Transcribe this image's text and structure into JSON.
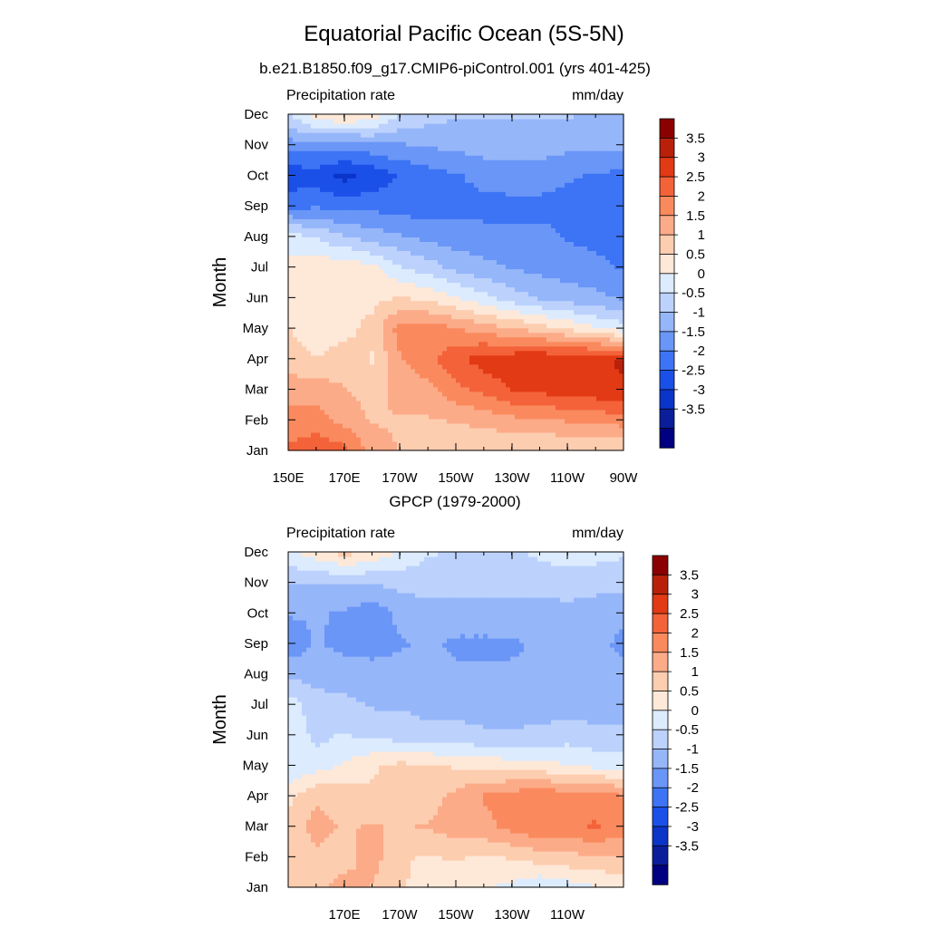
{
  "page": {
    "title": "Equatorial Pacific Ocean (5S-5N)",
    "subtitle": "b.e21.B1850.f09_g17.CMIP6-piControl.001 (yrs 401-425)"
  },
  "colors": {
    "levels": [
      "#000080",
      "#0a1e9c",
      "#0b34c8",
      "#1a50e8",
      "#3c74f5",
      "#6a96f7",
      "#96b6fa",
      "#bcd2fc",
      "#dcebfe",
      "#fee8d8",
      "#fdcdb0",
      "#fcab88",
      "#fa8a5e",
      "#f4623a",
      "#e23a14",
      "#b8200a",
      "#8b0000"
    ]
  },
  "chart_data": [
    {
      "type": "heatmap",
      "name": "b.e21.B1850.f09_g17.CMIP6-piControl.001 (yrs 401-425)",
      "left_label": "Precipitation rate",
      "right_label": "mm/day",
      "ylabel": "Month",
      "x_tick_labels": [
        "150E",
        "170E",
        "170W",
        "150W",
        "130W",
        "110W",
        "90W"
      ],
      "y_tick_labels": [
        "Jan",
        "Feb",
        "Mar",
        "Apr",
        "May",
        "Jun",
        "Jul",
        "Aug",
        "Sep",
        "Oct",
        "Nov",
        "Dec"
      ],
      "x_range": [
        150,
        270
      ],
      "y_range": [
        "Jan",
        "Dec"
      ],
      "colorbar_labels": [
        "3.5",
        "3",
        "2.5",
        "2",
        "1.5",
        "1",
        "0.5",
        "0",
        "-0.5",
        "-1",
        "-1.5",
        "-2",
        "-2.5",
        "-3",
        "-3.5"
      ],
      "colorbar_levels": [
        3.5,
        3,
        2.5,
        2,
        1.5,
        1,
        0.5,
        0,
        -0.5,
        -1,
        -1.5,
        -2,
        -2.5,
        -3,
        -3.5
      ],
      "x": [
        150,
        160,
        170,
        180,
        190,
        200,
        210,
        220,
        230,
        240,
        250,
        260,
        270
      ],
      "values": [
        [
          2.3,
          2.6,
          2.4,
          1.6,
          1.2,
          0.9,
          0.8,
          0.8,
          0.7,
          0.7,
          0.7,
          0.7,
          0.7
        ],
        [
          2.0,
          2.0,
          1.6,
          1.2,
          1.2,
          1.2,
          1.3,
          1.4,
          1.6,
          1.7,
          1.8,
          1.9,
          2.0
        ],
        [
          1.5,
          1.5,
          1.3,
          1.0,
          1.5,
          1.6,
          2.1,
          2.4,
          2.8,
          2.9,
          3.0,
          3.1,
          3.2
        ],
        [
          1.0,
          0.8,
          1.0,
          0.7,
          1.7,
          2.1,
          2.6,
          3.0,
          3.1,
          3.2,
          3.2,
          3.2,
          3.3
        ],
        [
          0.8,
          0.3,
          0.6,
          0.9,
          2.0,
          2.0,
          1.8,
          1.5,
          1.3,
          1.0,
          0.7,
          0.3,
          0.0
        ],
        [
          0.6,
          0.7,
          0.7,
          0.6,
          0.8,
          0.6,
          0.3,
          -0.1,
          -0.5,
          -0.8,
          -1.0,
          -1.1,
          -1.3
        ],
        [
          0.4,
          0.6,
          0.6,
          0.4,
          -0.2,
          -0.5,
          -0.9,
          -1.1,
          -1.3,
          -1.4,
          -1.5,
          -1.6,
          -1.8
        ],
        [
          0.0,
          -0.3,
          -0.7,
          -1.0,
          -1.2,
          -1.4,
          -1.5,
          -1.6,
          -1.6,
          -1.6,
          -1.8,
          -1.9,
          -2.1
        ],
        [
          -1.9,
          -1.8,
          -2.0,
          -1.9,
          -2.0,
          -2.0,
          -1.9,
          -1.9,
          -1.9,
          -1.9,
          -1.9,
          -1.9,
          -1.8
        ],
        [
          -2.6,
          -2.5,
          -2.9,
          -2.6,
          -2.2,
          -2.0,
          -1.8,
          -1.6,
          -1.5,
          -1.5,
          -1.7,
          -1.8,
          -1.9
        ],
        [
          -1.5,
          -1.5,
          -1.6,
          -1.4,
          -1.3,
          -1.2,
          -1.1,
          -1.0,
          -1.0,
          -1.0,
          -1.1,
          -1.1,
          -1.1
        ],
        [
          -0.3,
          0.6,
          0.9,
          0.6,
          -0.3,
          -0.5,
          -0.7,
          -0.7,
          -0.7,
          -0.7,
          -0.7,
          -0.8,
          -0.8
        ]
      ]
    },
    {
      "type": "heatmap",
      "name": "GPCP (1979-2000)",
      "left_label": "Precipitation rate",
      "right_label": "mm/day",
      "ylabel": "Month",
      "x_tick_labels": [
        "170E",
        "170W",
        "150W",
        "130W",
        "110W"
      ],
      "y_tick_labels": [
        "Jan",
        "Feb",
        "Mar",
        "Apr",
        "May",
        "Jun",
        "Jul",
        "Aug",
        "Sep",
        "Oct",
        "Nov",
        "Dec"
      ],
      "x_range": [
        150,
        270
      ],
      "y_range": [
        "Jan",
        "Dec"
      ],
      "colorbar_labels": [
        "3.5",
        "3",
        "2.5",
        "2",
        "1.5",
        "1",
        "0.5",
        "0",
        "-0.5",
        "-1",
        "-1.5",
        "-2",
        "-2.5",
        "-3",
        "-3.5"
      ],
      "colorbar_levels": [
        3.5,
        3,
        2.5,
        2,
        1.5,
        1,
        0.5,
        0,
        -0.5,
        -1,
        -1.5,
        -2,
        -2.5,
        -3,
        -3.5
      ],
      "x": [
        150,
        160,
        170,
        180,
        190,
        200,
        210,
        220,
        230,
        240,
        250,
        260,
        270
      ],
      "values": [
        [
          0.8,
          1.0,
          1.5,
          1.2,
          0.8,
          0.6,
          0.5,
          0.3,
          0.1,
          -0.2,
          0.0,
          0.2,
          0.4
        ],
        [
          0.9,
          1.2,
          1.0,
          1.5,
          0.8,
          0.7,
          0.8,
          0.7,
          0.8,
          1.0,
          1.1,
          1.2,
          1.2
        ],
        [
          1.0,
          1.4,
          1.2,
          1.3,
          1.2,
          1.3,
          1.5,
          1.6,
          1.9,
          2.2,
          2.1,
          2.3,
          2.0
        ],
        [
          0.6,
          1.2,
          1.0,
          0.8,
          0.9,
          1.0,
          1.4,
          1.8,
          2.0,
          2.2,
          2.0,
          2.1,
          1.8
        ],
        [
          -0.3,
          0.0,
          0.3,
          0.7,
          0.9,
          0.8,
          0.7,
          0.6,
          0.5,
          0.4,
          0.3,
          0.1,
          0.0
        ],
        [
          0.2,
          -0.4,
          -0.2,
          -0.4,
          -0.5,
          -0.6,
          -0.6,
          -0.7,
          -0.7,
          -0.6,
          -0.5,
          -0.6,
          -0.6
        ],
        [
          0.1,
          -0.6,
          -0.6,
          -0.8,
          -0.8,
          -0.9,
          -0.9,
          -0.9,
          -1.0,
          -1.0,
          -1.0,
          -1.0,
          -1.0
        ],
        [
          -0.9,
          -0.9,
          -1.0,
          -1.0,
          -1.1,
          -1.1,
          -1.2,
          -1.2,
          -1.2,
          -1.2,
          -1.0,
          -1.1,
          -1.2
        ],
        [
          -1.6,
          -1.2,
          -1.4,
          -1.5,
          -1.3,
          -1.2,
          -1.3,
          -1.3,
          -1.3,
          -1.2,
          -1.1,
          -1.2,
          -1.3
        ],
        [
          -1.2,
          -1.2,
          -1.3,
          -1.6,
          -1.1,
          -1.0,
          -1.1,
          -1.1,
          -1.1,
          -1.1,
          -1.0,
          -1.1,
          -1.2
        ],
        [
          -0.7,
          -0.7,
          -0.8,
          -0.7,
          -0.6,
          -0.5,
          -0.4,
          -0.4,
          -0.4,
          -0.4,
          -0.4,
          -0.5,
          -0.5
        ],
        [
          0.1,
          0.5,
          1.0,
          0.6,
          0.2,
          -0.2,
          -0.3,
          -0.3,
          -0.3,
          -0.2,
          -0.1,
          -0.1,
          -0.2
        ]
      ]
    }
  ]
}
